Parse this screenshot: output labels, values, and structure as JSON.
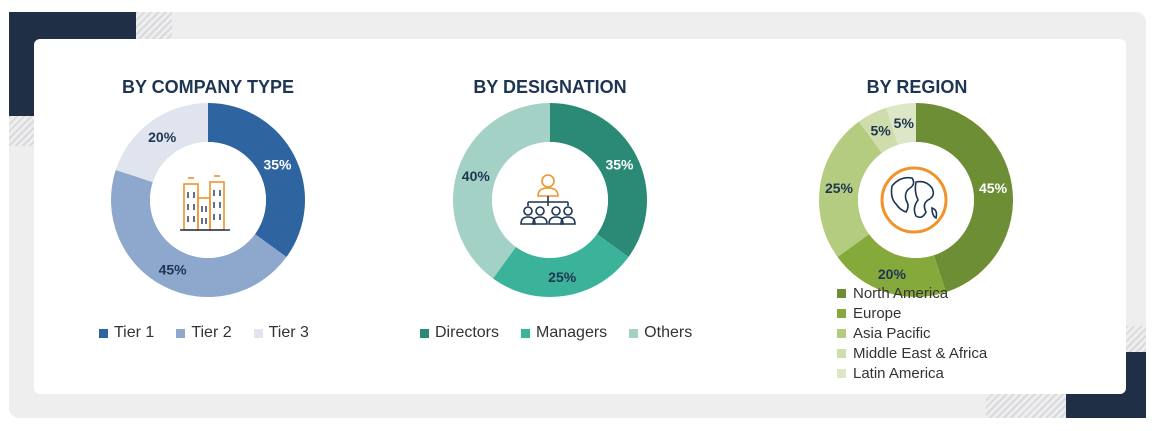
{
  "chart_data": [
    {
      "type": "pie",
      "title": "BY COMPANY TYPE",
      "categories": [
        "Tier 1",
        "Tier 2",
        "Tier 3"
      ],
      "values": [
        35,
        45,
        20
      ],
      "labels": [
        "35%",
        "45%",
        "20%"
      ],
      "colors": [
        "#2e64a0",
        "#8ea7cd",
        "#dfe4ee"
      ],
      "center_icon": "buildings-icon",
      "legend_placement": "bottom"
    },
    {
      "type": "pie",
      "title": "BY DESIGNATION",
      "categories": [
        "Directors",
        "Managers",
        "Others"
      ],
      "values": [
        35,
        25,
        40
      ],
      "labels": [
        "35%",
        "25%",
        "40%"
      ],
      "colors": [
        "#2a8a76",
        "#3bb39a",
        "#a4d1c5"
      ],
      "center_icon": "org-hierarchy-icon",
      "legend_placement": "bottom"
    },
    {
      "type": "pie",
      "title": "BY REGION",
      "categories": [
        "North America",
        "Europe",
        "Asia Pacific",
        "Middle East & Africa",
        "Latin America"
      ],
      "values": [
        45,
        20,
        25,
        5,
        5
      ],
      "labels": [
        "45%",
        "20%",
        "25%",
        "5%",
        "5%"
      ],
      "colors": [
        "#6e8e35",
        "#86a93c",
        "#b4cc7f",
        "#cfdcac",
        "#dde6c6"
      ],
      "center_icon": "globe-icon",
      "legend_placement": "bottom"
    }
  ],
  "icon_colors": {
    "buildings": "#f0932b",
    "people": "#f0932b",
    "people_outline": "#1e3552",
    "globe": "#f0932b",
    "globe_land": "#1e3552"
  }
}
